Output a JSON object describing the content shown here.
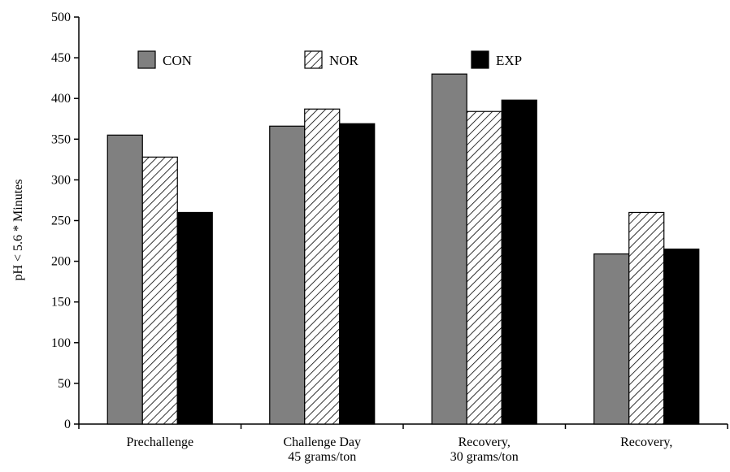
{
  "chart_data": {
    "type": "bar",
    "title": "",
    "xlabel": "",
    "ylabel": "pH < 5.6 * Minutes",
    "ylim": [
      0,
      500
    ],
    "yticks": [
      0,
      50,
      100,
      150,
      200,
      250,
      300,
      350,
      400,
      450,
      500
    ],
    "grid": false,
    "legend_position": "top",
    "categories": [
      [
        "Prechallenge"
      ],
      [
        "Challenge Day",
        "45 grams/ton"
      ],
      [
        "Recovery,",
        "30 grams/ton"
      ],
      [
        "Recovery,"
      ]
    ],
    "series": [
      {
        "name": "CON",
        "fill": "#808080",
        "pattern": "solid",
        "values": [
          355,
          366,
          430,
          209
        ]
      },
      {
        "name": "NOR",
        "fill": "#ffffff",
        "pattern": "hatch",
        "values": [
          328,
          387,
          384,
          260
        ]
      },
      {
        "name": "EXP",
        "fill": "#000000",
        "pattern": "solid",
        "values": [
          260,
          369,
          398,
          215
        ]
      }
    ]
  }
}
